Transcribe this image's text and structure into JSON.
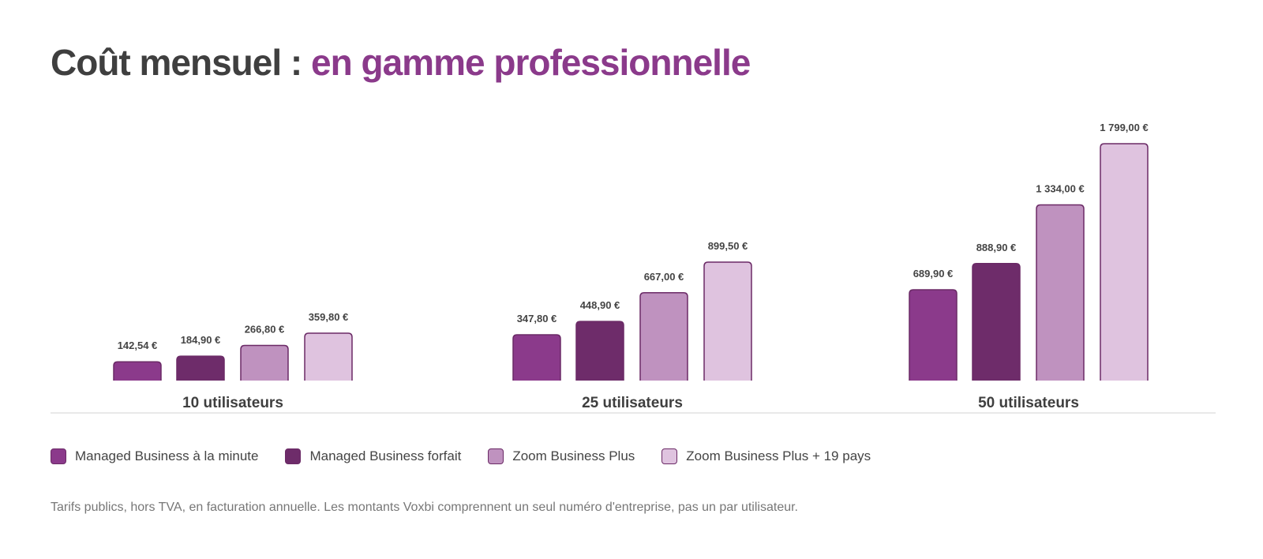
{
  "title": {
    "prefix": "Coût mensuel : ",
    "accent": "en gamme professionnelle"
  },
  "chart_data": {
    "type": "bar",
    "categories": [
      "10 utilisateurs",
      "25 utilisateurs",
      "50 utilisateurs"
    ],
    "series": [
      {
        "name": "Managed Business à la minute",
        "color": "#8b3a8b",
        "values": [
          142.54,
          347.8,
          689.9
        ],
        "labels": [
          "142,54 €",
          "347,80 €",
          "689,90 €"
        ]
      },
      {
        "name": "Managed Business forfait",
        "color": "#6e2c6a",
        "values": [
          184.9,
          448.9,
          888.9
        ],
        "labels": [
          "184,90 €",
          "448,90 €",
          "888,90 €"
        ]
      },
      {
        "name": "Zoom Business Plus",
        "color": "#bf92bf",
        "values": [
          266.8,
          667.0,
          1334.0
        ],
        "labels": [
          "266,80 €",
          "667,00 €",
          "1 334,00 €"
        ]
      },
      {
        "name": "Zoom Business Plus + 19 pays",
        "color": "#dfc3df",
        "values": [
          359.8,
          899.5,
          1799.0
        ],
        "labels": [
          "359,80 €",
          "899,50 €",
          "1 799,00 €"
        ]
      }
    ],
    "bar_border_color": "#6b2a66",
    "grid": false,
    "legend_position": "bottom-left"
  },
  "footnote": "Tarifs publics, hors TVA, en facturation annuelle. Les montants Voxbi comprennent un seul numéro d'entreprise, pas un par utilisateur."
}
